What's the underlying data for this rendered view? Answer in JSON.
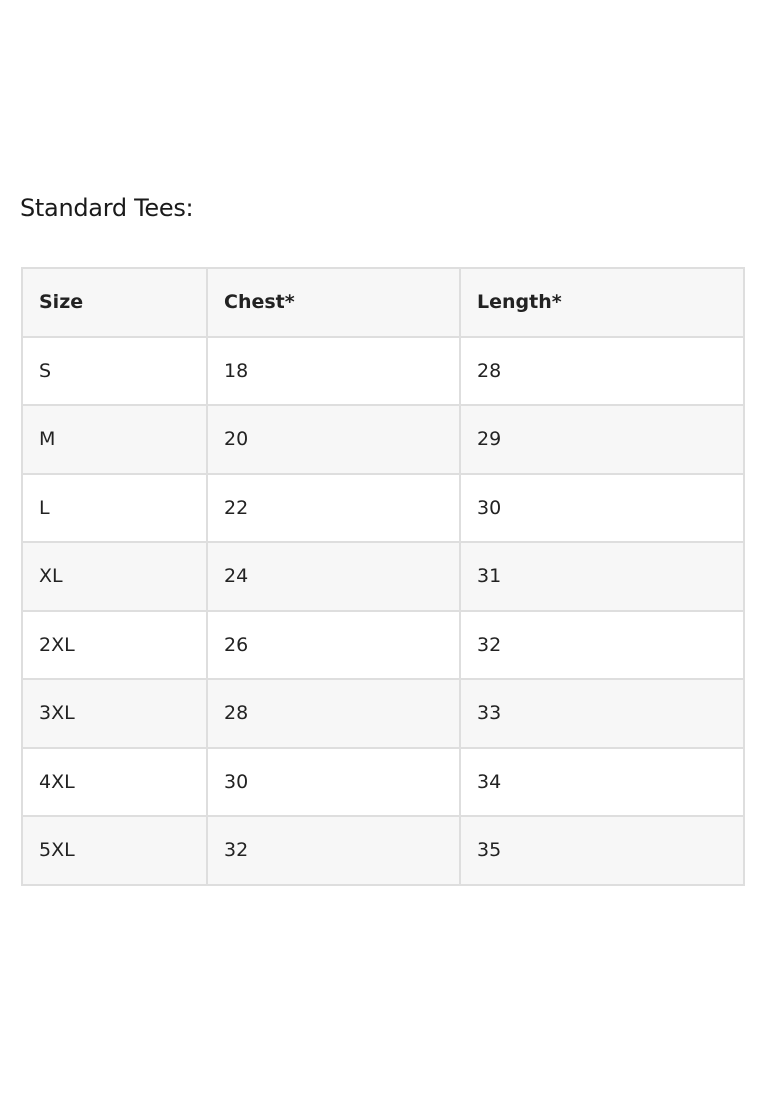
{
  "heading": "Standard Tees:",
  "table": {
    "headers": [
      "Size",
      "Chest*",
      "Length*"
    ],
    "rows": [
      [
        "S",
        "18",
        "28"
      ],
      [
        "M",
        "20",
        "29"
      ],
      [
        "L",
        "22",
        "30"
      ],
      [
        "XL",
        "24",
        "31"
      ],
      [
        "2XL",
        "26",
        "32"
      ],
      [
        "3XL",
        "28",
        "33"
      ],
      [
        "4XL",
        "30",
        "34"
      ],
      [
        "5XL",
        "32",
        "35"
      ]
    ]
  }
}
